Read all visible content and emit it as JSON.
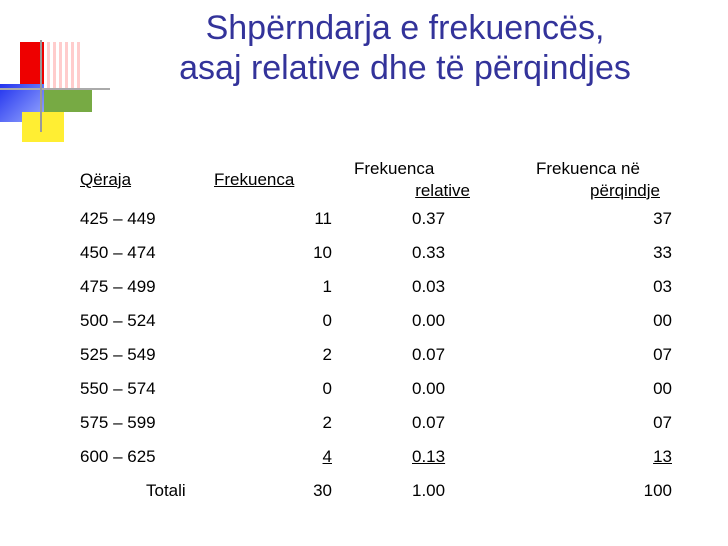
{
  "title_line1": "Shpërndarja e frekuencës,",
  "title_line2": "asaj relative dhe të përqindjes",
  "colors": {
    "title": "#33339a",
    "deco_red": "#ee0000",
    "deco_blue": "#3344ff",
    "deco_green": "#77aa44",
    "deco_yellow": "#ffee33",
    "deco_pink": "#ffbbbb"
  },
  "headers": {
    "col1": "Qëraja",
    "col2": "Frekuenca",
    "col3_line1": "Frekuenca",
    "col3_line2": "relative",
    "col4_line1": "Frekuenca në",
    "col4_line2": "përqindje"
  },
  "rows": [
    {
      "range": "425 – 449",
      "freq": "11",
      "rel": "0.37",
      "pct": "37"
    },
    {
      "range": "450 – 474",
      "freq": "10",
      "rel": "0.33",
      "pct": "33"
    },
    {
      "range": "475 – 499",
      "freq": "1",
      "rel": "0.03",
      "pct": "03"
    },
    {
      "range": "500 – 524",
      "freq": "0",
      "rel": "0.00",
      "pct": "00"
    },
    {
      "range": "525 – 549",
      "freq": "2",
      "rel": "0.07",
      "pct": "07"
    },
    {
      "range": "550 – 574",
      "freq": "0",
      "rel": "0.00",
      "pct": "00"
    },
    {
      "range": "575 – 599",
      "freq": "2",
      "rel": "0.07",
      "pct": "07"
    },
    {
      "range": "600 – 625",
      "freq": "4",
      "rel": "0.13",
      "pct": "13"
    }
  ],
  "total": {
    "label": "Totali",
    "freq": "30",
    "rel": "1.00",
    "pct": "100"
  }
}
